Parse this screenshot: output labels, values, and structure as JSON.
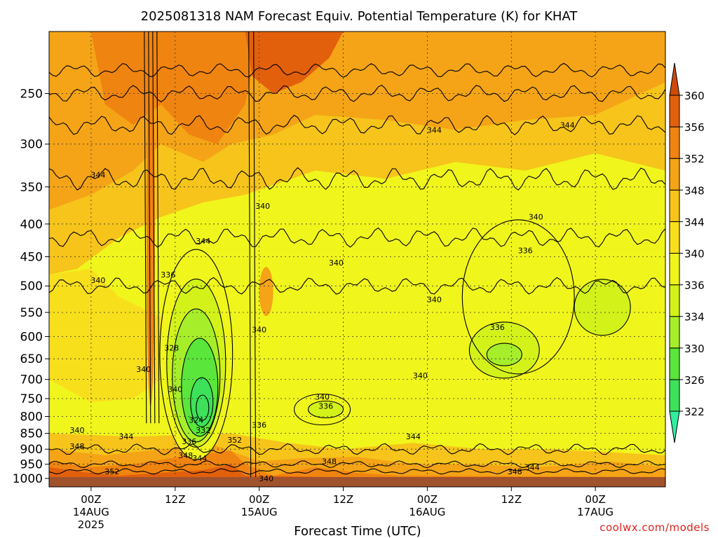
{
  "chart_data": {
    "type": "heatmap",
    "title": "2025081318 NAM Forecast Equiv. Potential Temperature (K) for KHAT",
    "xlabel": "Forecast Time (UTC)",
    "ylabel": "",
    "y_scale": "log-pressure",
    "ylim": [
      1000,
      200
    ],
    "y_ticks": [
      250,
      300,
      350,
      400,
      450,
      500,
      550,
      600,
      650,
      700,
      750,
      800,
      850,
      900,
      950,
      1000
    ],
    "x_range_hours": [
      18,
      106
    ],
    "x_ticks": [
      {
        "hour": 24,
        "label": "00Z",
        "sub": "14AUG",
        "sub2": "2025"
      },
      {
        "hour": 36,
        "label": "12Z",
        "sub": "",
        "sub2": ""
      },
      {
        "hour": 48,
        "label": "00Z",
        "sub": "15AUG",
        "sub2": ""
      },
      {
        "hour": 60,
        "label": "12Z",
        "sub": "",
        "sub2": ""
      },
      {
        "hour": 72,
        "label": "00Z",
        "sub": "16AUG",
        "sub2": ""
      },
      {
        "hour": 84,
        "label": "12Z",
        "sub": "",
        "sub2": ""
      },
      {
        "hour": 96,
        "label": "00Z",
        "sub": "17AUG",
        "sub2": ""
      }
    ],
    "grid": true,
    "colorbar": {
      "levels": [
        322,
        326,
        330,
        334,
        336,
        340,
        344,
        348,
        352,
        356,
        360
      ],
      "colors": [
        "#31ee9e",
        "#3ee15a",
        "#5ae63a",
        "#a6ee2a",
        "#d2f21a",
        "#f0f51c",
        "#f8df1c",
        "#f6c41a",
        "#f4a416",
        "#f08410",
        "#e2600c",
        "#cd4a0a"
      ],
      "placement": "right"
    },
    "contour_labels": [
      {
        "hour": 25,
        "p": 335,
        "text": "344"
      },
      {
        "hour": 25,
        "p": 490,
        "text": "340"
      },
      {
        "hour": 22,
        "p": 840,
        "text": "340"
      },
      {
        "hour": 22,
        "p": 890,
        "text": "348"
      },
      {
        "hour": 27,
        "p": 975,
        "text": "352"
      },
      {
        "hour": 29,
        "p": 860,
        "text": "344"
      },
      {
        "hour": 31.5,
        "p": 675,
        "text": "340"
      },
      {
        "hour": 35,
        "p": 480,
        "text": "336"
      },
      {
        "hour": 35.5,
        "p": 625,
        "text": "328"
      },
      {
        "hour": 36,
        "p": 725,
        "text": "340"
      },
      {
        "hour": 39,
        "p": 810,
        "text": "324"
      },
      {
        "hour": 40,
        "p": 840,
        "text": "332"
      },
      {
        "hour": 38,
        "p": 875,
        "text": "336"
      },
      {
        "hour": 37.5,
        "p": 920,
        "text": "348"
      },
      {
        "hour": 39.5,
        "p": 930,
        "text": "344"
      },
      {
        "hour": 40,
        "p": 425,
        "text": "344"
      },
      {
        "hour": 44.5,
        "p": 870,
        "text": "352"
      },
      {
        "hour": 48.5,
        "p": 375,
        "text": "340"
      },
      {
        "hour": 48,
        "p": 585,
        "text": "340"
      },
      {
        "hour": 48,
        "p": 825,
        "text": "336"
      },
      {
        "hour": 49,
        "p": 1000,
        "text": "340"
      },
      {
        "hour": 57,
        "p": 745,
        "text": "340"
      },
      {
        "hour": 57.5,
        "p": 770,
        "text": "336"
      },
      {
        "hour": 59,
        "p": 460,
        "text": "340"
      },
      {
        "hour": 58,
        "p": 940,
        "text": "348"
      },
      {
        "hour": 70,
        "p": 860,
        "text": "344"
      },
      {
        "hour": 73,
        "p": 285,
        "text": "344"
      },
      {
        "hour": 73,
        "p": 525,
        "text": "340"
      },
      {
        "hour": 71,
        "p": 690,
        "text": "340"
      },
      {
        "hour": 82,
        "p": 580,
        "text": "336"
      },
      {
        "hour": 86,
        "p": 440,
        "text": "336"
      },
      {
        "hour": 87.5,
        "p": 390,
        "text": "340"
      },
      {
        "hour": 92,
        "p": 280,
        "text": "344"
      },
      {
        "hour": 84.5,
        "p": 975,
        "text": "348"
      },
      {
        "hour": 87,
        "p": 960,
        "text": "344"
      }
    ]
  },
  "credit": "coolwx.com/models"
}
